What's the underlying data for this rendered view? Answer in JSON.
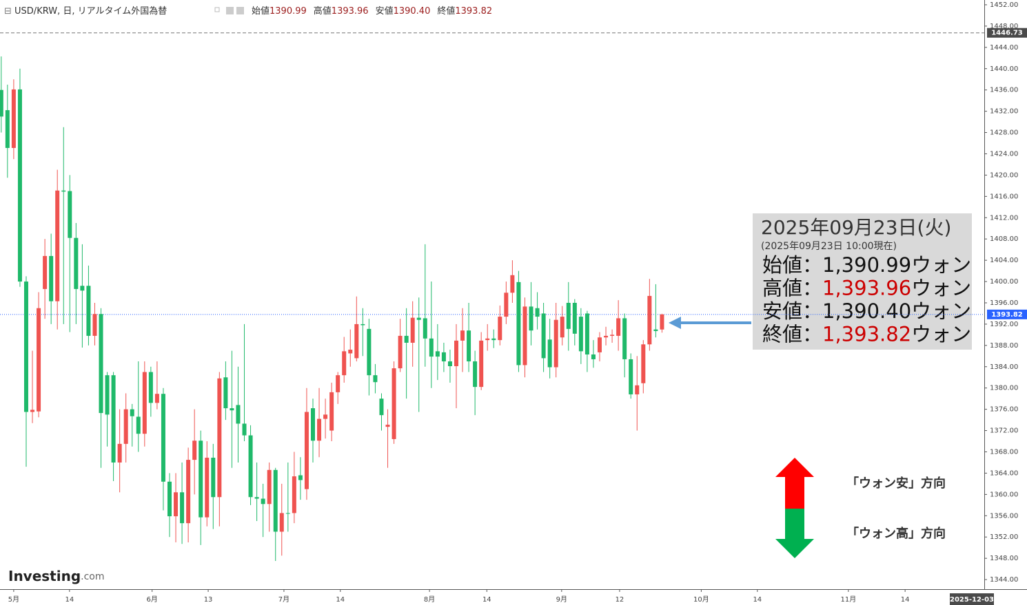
{
  "header": {
    "symbol": "USD/KRW, 日, リアルタイム外国為替",
    "ohlc": [
      {
        "label": "始値",
        "value": "1390.99"
      },
      {
        "label": "高値",
        "value": "1393.96"
      },
      {
        "label": "安値",
        "value": "1390.40"
      },
      {
        "label": "終値",
        "value": "1393.82"
      }
    ]
  },
  "chart_data": {
    "type": "candlestick",
    "up_color": "#ef5350",
    "down_color": "#1fb96a",
    "grid": false,
    "open": [
      1436,
      1432.2,
      1425.1,
      1436.1,
      1400,
      1375.5,
      1375.6,
      1398.6,
      1404.8,
      1396.3,
      1417.1,
      1417,
      1408.2,
      1399.2,
      1399.2,
      1389.8,
      1393.9,
      1382.4,
      1382.4,
      1366,
      1369.5,
      1376,
      1374.6,
      1371.4,
      1383,
      1377.2,
      1378.9,
      1362.4,
      1355.9,
      1360.4,
      1354.6,
      1366.5,
      1370.1,
      1355.7,
      1366.9,
      1359.5,
      1382,
      1376.2,
      1376.8,
      1373.3,
      1371.1,
      1359.5,
      1359.2,
      1358.2,
      1364.6,
      1353,
      1356.5,
      1356.5,
      1363.6,
      1361,
      1376.2,
      1370.1,
      1374.2,
      1372,
      1379.2,
      1382.4,
      1386.5,
      1385.6,
      1392,
      1391.1,
      1382.4,
      1378,
      1372.7,
      1370.4,
      1383.7,
      1389.8,
      1388.5,
      1393.2,
      1393.1,
      1389.3,
      1386.9,
      1386.7,
      1385,
      1384.1,
      1388.9,
      1390.8,
      1385,
      1380.2,
      1389,
      1389.3,
      1389,
      1393.4,
      1397.9,
      1399.9,
      1384.3,
      1395.3,
      1395,
      1394,
      1389.1,
      1383.9,
      1389.5,
      1396,
      1396,
      1393.4,
      1394,
      1386.3,
      1386.7,
      1389.5,
      1389.8,
      1389.8,
      1393.1,
      1385.4,
      1378.8,
      1380.9,
      1388.2,
      1391,
      1390.99
    ],
    "high": [
      1442.3,
      1437,
      1438,
      1440,
      1401,
      1387,
      1398,
      1408,
      1409,
      1421,
      1429,
      1420,
      1411,
      1407,
      1403,
      1396,
      1395,
      1383,
      1383,
      1376,
      1379,
      1377,
      1385,
      1385,
      1384,
      1385,
      1380,
      1364,
      1364,
      1366,
      1368.8,
      1376,
      1372,
      1370,
      1369.5,
      1383,
      1385,
      1387,
      1384,
      1392,
      1373,
      1366,
      1362,
      1366,
      1365,
      1362,
      1366,
      1368,
      1367,
      1380,
      1378,
      1380,
      1378,
      1381,
      1383,
      1389.6,
      1391,
      1397.2,
      1395,
      1393,
      1384.5,
      1379,
      1376,
      1385,
      1393,
      1395,
      1396.3,
      1397,
      1407,
      1400,
      1392,
      1388.5,
      1387.2,
      1392,
      1395,
      1396,
      1387,
      1390.5,
      1392,
      1391,
      1395.5,
      1400,
      1404,
      1402,
      1397,
      1399.9,
      1398,
      1396,
      1393,
      1396,
      1395.4,
      1399.9,
      1396.7,
      1395,
      1394.5,
      1389,
      1390.5,
      1391.5,
      1391,
      1396.5,
      1394,
      1386.5,
      1386,
      1389,
      1400.5,
      1399.5,
      1393.96
    ],
    "low": [
      1428,
      1419.5,
      1423,
      1399,
      1365.2,
      1373.4,
      1374.5,
      1393,
      1392,
      1391,
      1392,
      1390.5,
      1392,
      1387.6,
      1388,
      1388,
      1365,
      1369,
      1362.5,
      1360.4,
      1366,
      1369,
      1368,
      1369,
      1374.6,
      1376,
      1357,
      1352,
      1351,
      1350.7,
      1351,
      1360,
      1350.5,
      1354,
      1353.5,
      1354,
      1374,
      1365,
      1366,
      1370,
      1358,
      1355,
      1352,
      1353,
      1347.5,
      1348.5,
      1353,
      1354.6,
      1359,
      1359,
      1366,
      1367,
      1370.5,
      1370,
      1377,
      1381,
      1384,
      1385,
      1386,
      1378.6,
      1379,
      1372,
      1365,
      1369.5,
      1383,
      1378,
      1384,
      1375.5,
      1384,
      1380,
      1381.5,
      1383,
      1381,
      1376.2,
      1383,
      1383,
      1374.9,
      1379.6,
      1387,
      1387.5,
      1388,
      1392,
      1396,
      1383,
      1382,
      1388,
      1391,
      1383,
      1381.8,
      1382,
      1388,
      1387,
      1388,
      1384.5,
      1383,
      1383.8,
      1385,
      1388,
      1388.5,
      1387,
      1382,
      1378,
      1372,
      1379,
      1387,
      1389.5,
      1390.4
    ],
    "close": [
      1431,
      1425.1,
      1436.1,
      1400,
      1375.5,
      1375.9,
      1395,
      1404.8,
      1396.3,
      1417.1,
      1416.9,
      1408.2,
      1398.6,
      1398.3,
      1389.8,
      1393.9,
      1375.3,
      1375,
      1366,
      1369.5,
      1376,
      1374.7,
      1371.4,
      1383,
      1377.2,
      1378.9,
      1362.4,
      1355.9,
      1360.4,
      1354.6,
      1366.5,
      1370.1,
      1355.7,
      1366.9,
      1359.5,
      1381.8,
      1376.2,
      1375.8,
      1373.3,
      1371.1,
      1359.5,
      1359.2,
      1358.2,
      1364.6,
      1353,
      1356.5,
      1356.4,
      1363.4,
      1362.7,
      1375.5,
      1370.1,
      1374.2,
      1375,
      1379.2,
      1382.4,
      1386.9,
      1387.2,
      1392,
      1391.8,
      1382.4,
      1381.1,
      1374.9,
      1373.1,
      1383.7,
      1389.8,
      1388.5,
      1393.2,
      1392.8,
      1389.3,
      1385.9,
      1385.9,
      1385,
      1384.1,
      1388.9,
      1390.8,
      1385,
      1380.2,
      1388.9,
      1389.3,
      1389,
      1393.4,
      1397.9,
      1401.2,
      1384.3,
      1395.3,
      1390.8,
      1393.4,
      1385.6,
      1383.9,
      1392.8,
      1393.4,
      1391.1,
      1390.2,
      1386.9,
      1386.3,
      1385.4,
      1389.5,
      1389.8,
      1390,
      1393.1,
      1385.4,
      1378.8,
      1380.5,
      1388.2,
      1397.3,
      1390.7,
      1393.82
    ],
    "ylim": [
      1342.2,
      1452.9
    ],
    "yticks": [
      {
        "value": 1344,
        "label": "1344.00"
      },
      {
        "value": 1348,
        "label": "1348.00"
      },
      {
        "value": 1352,
        "label": "1352.00"
      },
      {
        "value": 1356,
        "label": "1356.00"
      },
      {
        "value": 1360,
        "label": "1360.00"
      },
      {
        "value": 1364,
        "label": "1364.00"
      },
      {
        "value": 1368,
        "label": "1368.00"
      },
      {
        "value": 1372,
        "label": "1372.00"
      },
      {
        "value": 1376,
        "label": "1376.00"
      },
      {
        "value": 1380,
        "label": "1380.00"
      },
      {
        "value": 1384,
        "label": "1384.00"
      },
      {
        "value": 1388,
        "label": "1388.00"
      },
      {
        "value": 1392,
        "label": "1392.00"
      },
      {
        "value": 1396,
        "label": "1396.00"
      },
      {
        "value": 1400,
        "label": "1400.00"
      },
      {
        "value": 1404,
        "label": "1404.00"
      },
      {
        "value": 1408,
        "label": "1408.00"
      },
      {
        "value": 1412,
        "label": "1412.00"
      },
      {
        "value": 1416,
        "label": "1416.00"
      },
      {
        "value": 1420,
        "label": "1420.00"
      },
      {
        "value": 1424,
        "label": "1424.00"
      },
      {
        "value": 1428,
        "label": "1428.00"
      },
      {
        "value": 1432,
        "label": "1432.00"
      },
      {
        "value": 1436,
        "label": "1436.00"
      },
      {
        "value": 1440,
        "label": "1440.00"
      },
      {
        "value": 1444,
        "label": "1444.00"
      },
      {
        "value": 1448,
        "label": "1448.00"
      },
      {
        "value": 1452,
        "label": "1452.00"
      }
    ],
    "xlim": [
      -0.2,
      157.7
    ],
    "xticks": [
      {
        "value": 2,
        "label": "5月"
      },
      {
        "value": 10.95,
        "label": "14"
      },
      {
        "value": 24.2,
        "label": "6月"
      },
      {
        "value": 33.2,
        "label": "13"
      },
      {
        "value": 45.35,
        "label": "7月"
      },
      {
        "value": 54.4,
        "label": "14"
      },
      {
        "value": 68.7,
        "label": "8月"
      },
      {
        "value": 77.9,
        "label": "14"
      },
      {
        "value": 89.9,
        "label": "9月"
      },
      {
        "value": 99.2,
        "label": "12"
      },
      {
        "value": 112.3,
        "label": "10月"
      },
      {
        "value": 121.3,
        "label": "14"
      },
      {
        "value": 135.9,
        "label": "11月"
      },
      {
        "value": 145,
        "label": "14"
      }
    ],
    "cursor_date": "2025-12-03",
    "high_marker": {
      "value": 1446.73,
      "label": "1446.73",
      "color": "#4a4a4a"
    },
    "last_marker": {
      "value": 1393.82,
      "label": "1393.82",
      "color": "#2962ff"
    }
  },
  "annotations": {
    "date": "2025年09月23日(火)",
    "asof": "(2025年09月23日 10:00現在)",
    "rows": [
      {
        "label": "始値：",
        "value": "1,390.99",
        "unit": "ウォン",
        "color": "#111111"
      },
      {
        "label": "高値：",
        "value": "1,393.96",
        "unit": "ウォン",
        "color": "#cc0000"
      },
      {
        "label": "安値：",
        "value": "1,390.40",
        "unit": "ウォン",
        "color": "#111111"
      },
      {
        "label": "終値：",
        "value": "1,393.82",
        "unit": "ウォン",
        "color": "#cc0000"
      }
    ],
    "weak_won": "「ウォン安」方向",
    "strong_won": "「ウォン高」方向"
  },
  "logo": {
    "brand": "Investing",
    "suffix": ".com"
  }
}
